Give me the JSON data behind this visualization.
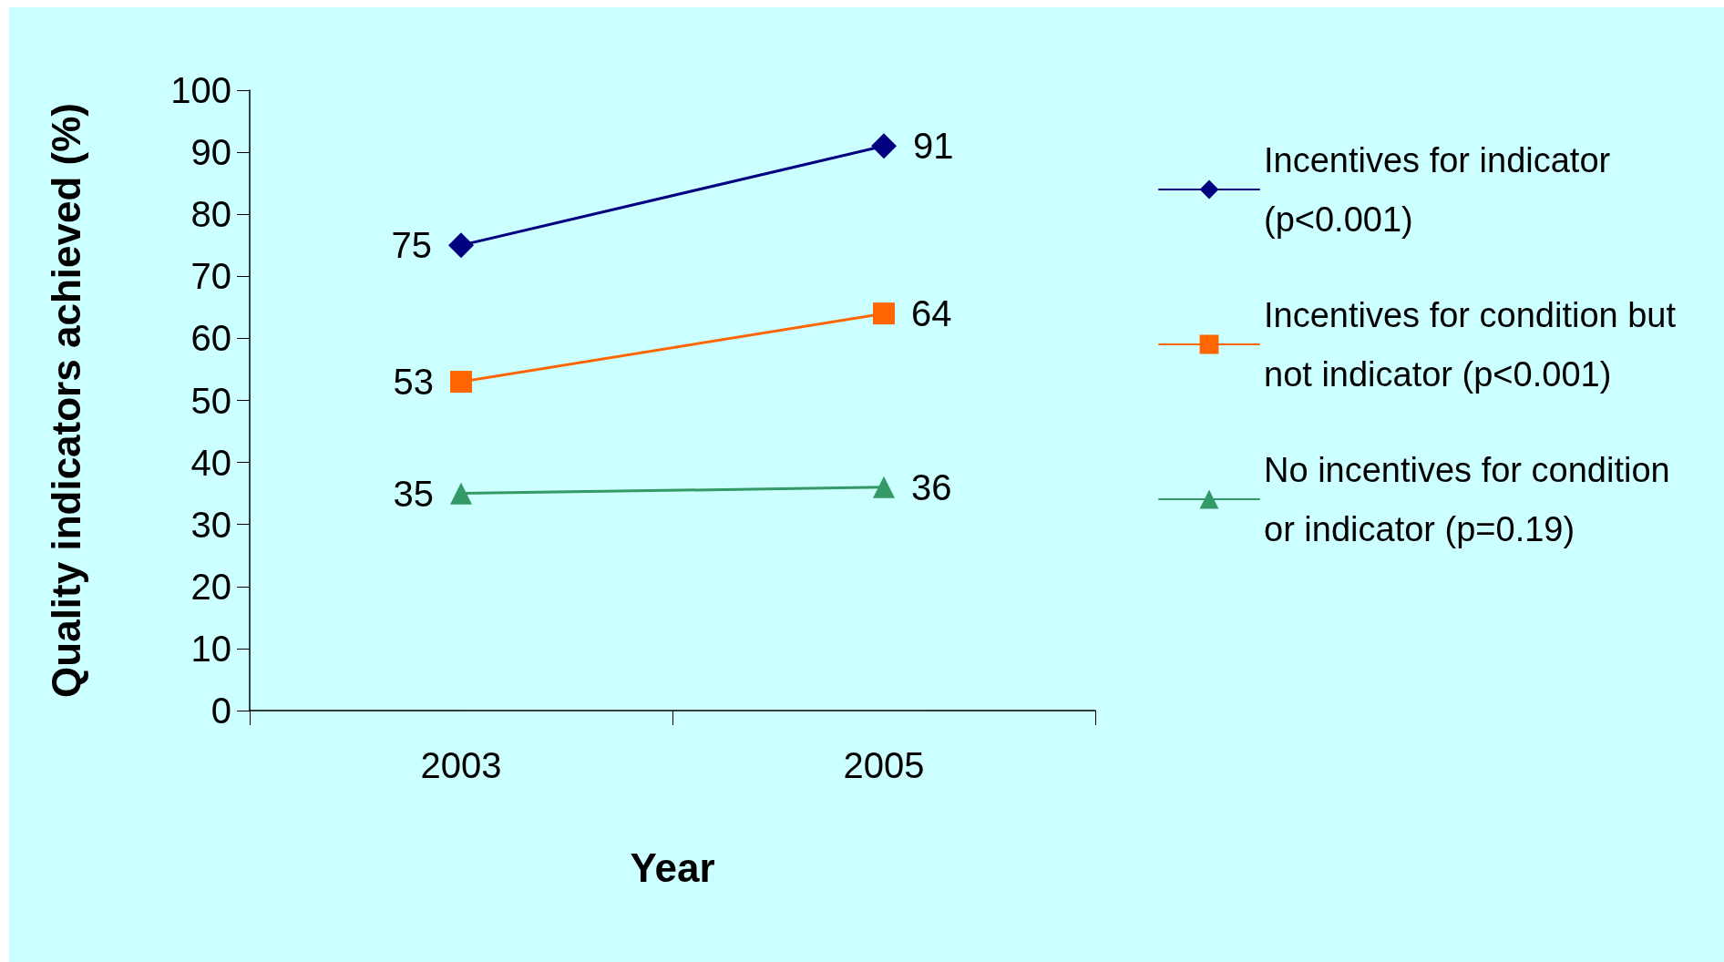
{
  "chart_data": {
    "type": "line",
    "xlabel": "Year",
    "ylabel": "Quality indicators achieved (%)",
    "categories": [
      "2003",
      "2005"
    ],
    "series": [
      {
        "name": "Incentives for indicator (p<0.001)",
        "color": "#000080",
        "marker": "diamond",
        "values": [
          75,
          91
        ]
      },
      {
        "name": "Incentives for condition but not indicator (p<0.001)",
        "color": "#ff6600",
        "marker": "square",
        "values": [
          53,
          64
        ]
      },
      {
        "name": "No incentives for condition or indicator (p=0.19)",
        "color": "#339966",
        "marker": "triangle",
        "values": [
          35,
          36
        ]
      }
    ],
    "ylim": [
      0,
      100
    ],
    "yticks": [
      0,
      10,
      20,
      30,
      40,
      50,
      60,
      70,
      80,
      90,
      100
    ],
    "grid": false,
    "legend": "right",
    "data_labels": true
  }
}
